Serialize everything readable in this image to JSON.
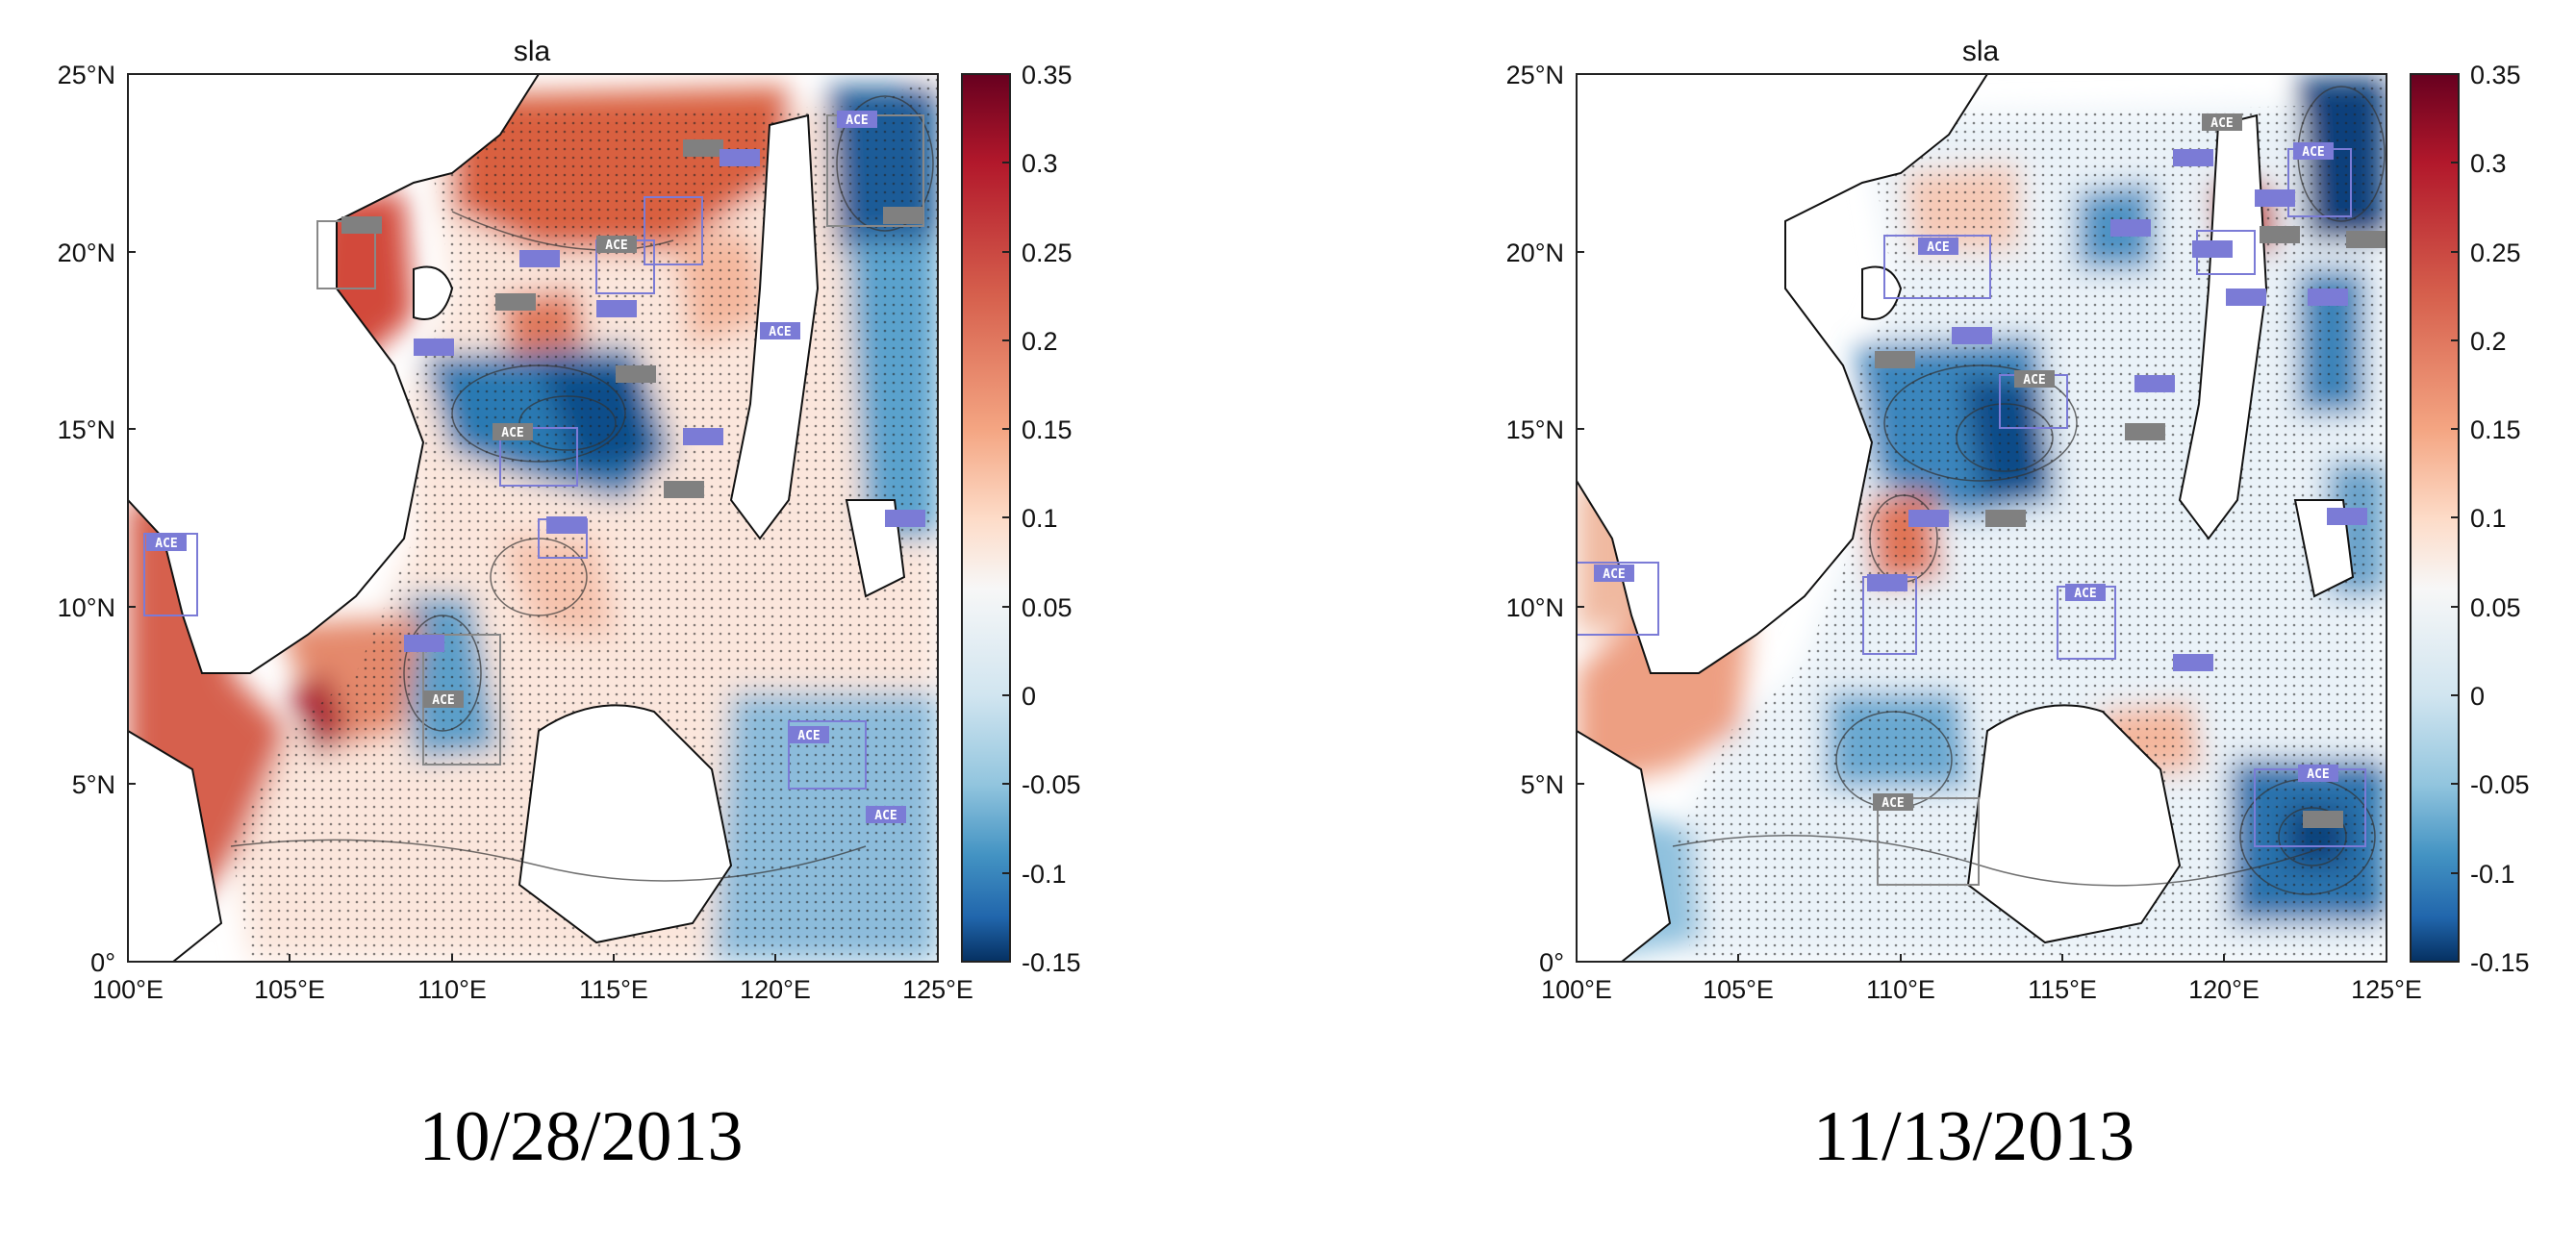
{
  "figure": {
    "variable": "sla",
    "colormap": {
      "low": "#08306b",
      "mid": "#f7f7f7",
      "high": "#67001f"
    },
    "panels": [
      {
        "id": "left",
        "title": "sla",
        "date": "10/28/2013",
        "lon_ticks": [
          "100°E",
          "105°E",
          "110°E",
          "115°E",
          "120°E",
          "125°E"
        ],
        "lat_ticks": [
          "0°",
          "5°N",
          "10°N",
          "15°N",
          "20°N",
          "25°N"
        ],
        "colorbar_ticks": [
          "0.35",
          "0.3",
          "0.25",
          "0.2",
          "0.15",
          "0.1",
          "0.05",
          "0",
          "-0.05",
          "-0.1",
          "-0.15"
        ],
        "eddy_label": "ACE"
      },
      {
        "id": "right",
        "title": "sla",
        "date": "11/13/2013",
        "lon_ticks": [
          "100°E",
          "105°E",
          "110°E",
          "115°E",
          "120°E",
          "125°E"
        ],
        "lat_ticks": [
          "0°",
          "5°N",
          "10°N",
          "15°N",
          "20°N",
          "25°N"
        ],
        "colorbar_ticks": [
          "0.35",
          "0.3",
          "0.25",
          "0.2",
          "0.15",
          "0.1",
          "0.05",
          "0",
          "-0.05",
          "-0.1",
          "-0.15"
        ],
        "eddy_label": "ACE"
      }
    ]
  },
  "chart_data": [
    {
      "type": "heatmap",
      "title": "sla",
      "date": "10/28/2013",
      "xlabel": "",
      "ylabel": "",
      "x_range_deg_e": [
        100,
        125
      ],
      "y_range_deg_n": [
        0,
        25
      ],
      "colorbar_range": [
        -0.15,
        0.35
      ],
      "colorbar_ticks": [
        0.35,
        0.3,
        0.25,
        0.2,
        0.15,
        0.1,
        0.05,
        0,
        -0.05,
        -0.1,
        -0.15
      ]
    },
    {
      "type": "heatmap",
      "title": "sla",
      "date": "11/13/2013",
      "xlabel": "",
      "ylabel": "",
      "x_range_deg_e": [
        100,
        125
      ],
      "y_range_deg_n": [
        0,
        25
      ],
      "colorbar_range": [
        -0.15,
        0.35
      ],
      "colorbar_ticks": [
        0.35,
        0.3,
        0.25,
        0.2,
        0.15,
        0.1,
        0.05,
        0,
        -0.05,
        -0.1,
        -0.15
      ]
    }
  ]
}
